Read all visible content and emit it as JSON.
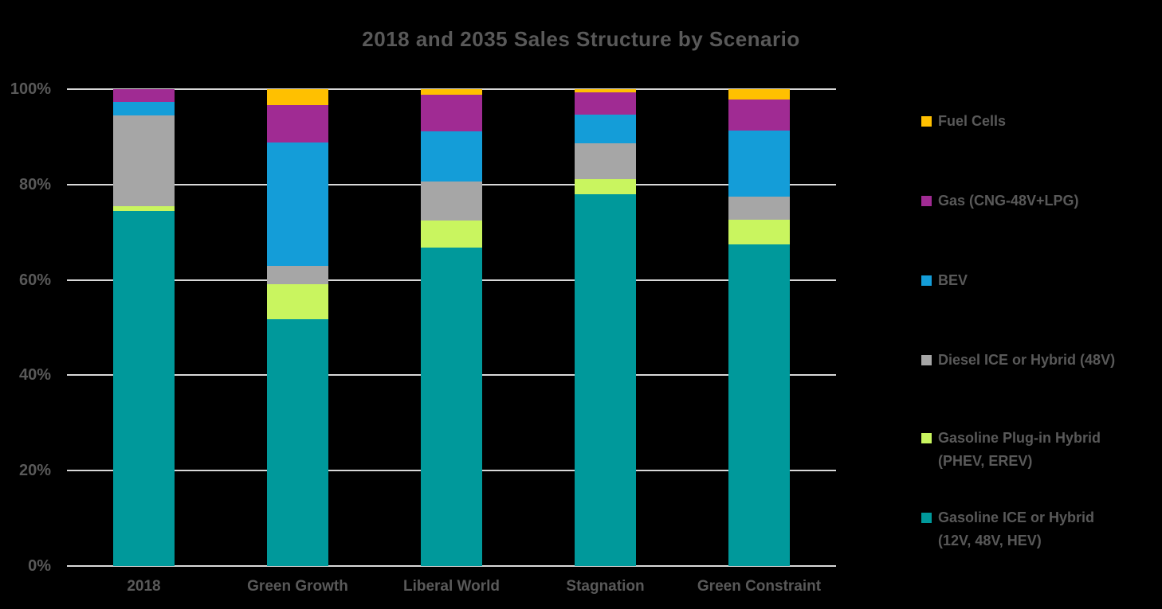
{
  "title": "2018 and 2035 Sales Structure by Scenario",
  "colors": {
    "background": "#000000",
    "title_text": "#595959",
    "axis_text": "#595959",
    "legend_text": "#595959",
    "gridline": "#D9D9D9"
  },
  "y_axis": {
    "ticks": [
      "100%",
      "80%",
      "60%",
      "40%",
      "20%",
      "0%"
    ]
  },
  "x_axis": {
    "labels": [
      "2018",
      "Green Growth",
      "Liberal World",
      "Stagnation",
      "Green Constraint"
    ]
  },
  "legend": {
    "items": [
      {
        "label": "Fuel Cells",
        "color": "#FFC000"
      },
      {
        "label": "Gas (CNG-48V+LPG)",
        "color": "#A02B93"
      },
      {
        "label": "BEV",
        "color": "#149DD8"
      },
      {
        "label": "Diesel ICE or Hybrid (48V)",
        "color": "#A6A6A6"
      },
      {
        "label": "Gasoline Plug-in Hybrid\n(PHEV, EREV)",
        "color": "#C9F55F"
      },
      {
        "label": "Gasoline ICE or Hybrid\n(12V, 48V, HEV)",
        "color": "#00999B"
      }
    ]
  },
  "chart_data": {
    "type": "bar",
    "stacked": true,
    "title": "2018 and 2035 Sales Structure by Scenario",
    "xlabel": "",
    "ylabel": "",
    "unit": "percent of sales",
    "ylim": [
      0,
      100
    ],
    "grid": true,
    "legend_position": "right",
    "categories": [
      "2018",
      "Green Growth",
      "Liberal World",
      "Stagnation",
      "Green Constraint"
    ],
    "series": [
      {
        "name": "Gasoline ICE or Hybrid (12V, 48V, HEV)",
        "color": "#00999B",
        "values": [
          74.5,
          51.7,
          66.7,
          78.0,
          67.4
        ]
      },
      {
        "name": "Gasoline Plug-in Hybrid (PHEV, EREV)",
        "color": "#C9F55F",
        "values": [
          1.0,
          7.4,
          5.7,
          3.2,
          5.3
        ]
      },
      {
        "name": "Diesel ICE or Hybrid (48V)",
        "color": "#A6A6A6",
        "values": [
          19.0,
          3.8,
          8.3,
          7.5,
          4.8
        ]
      },
      {
        "name": "BEV",
        "color": "#149DD8",
        "values": [
          2.8,
          26.0,
          10.5,
          6.0,
          13.9
        ]
      },
      {
        "name": "Gas (CNG-48V+LPG)",
        "color": "#A02B93",
        "values": [
          2.7,
          7.8,
          7.7,
          4.6,
          6.5
        ]
      },
      {
        "name": "Fuel Cells",
        "color": "#FFC000",
        "values": [
          0,
          3.3,
          1.1,
          0.7,
          2.1
        ]
      }
    ]
  }
}
